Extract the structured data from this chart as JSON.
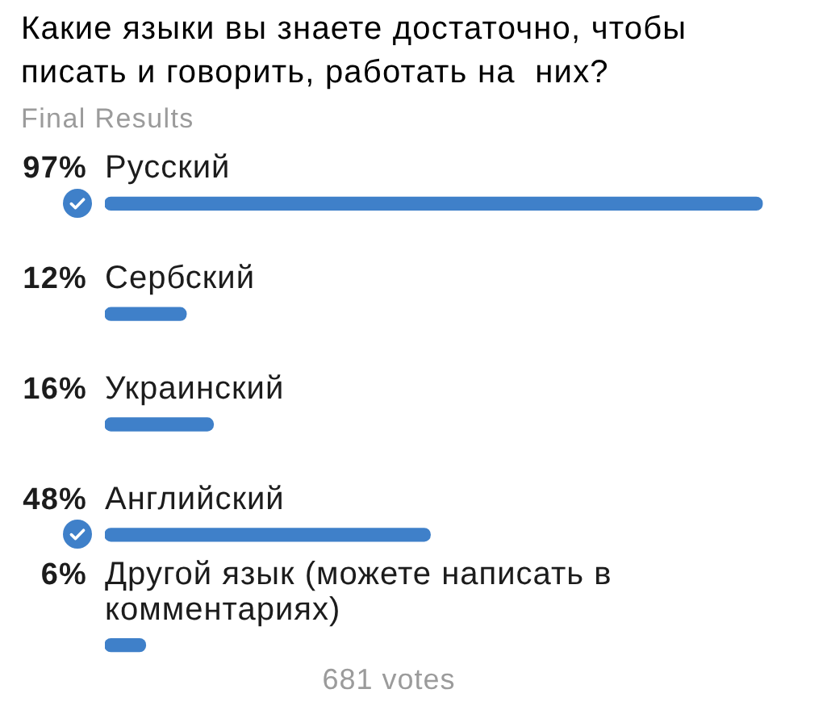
{
  "chart_data": {
    "type": "bar",
    "orientation": "horizontal",
    "title": "Какие языки вы знаете достаточно, чтобы писать и говорить, работать на  них?",
    "subtitle": "Final Results",
    "categories": [
      "Русский",
      "Сербский",
      "Украинский",
      "Английский",
      "Другой язык (можете написать в комментариях)"
    ],
    "values": [
      97,
      12,
      16,
      48,
      6
    ],
    "value_labels": [
      "97%",
      "12%",
      "16%",
      "48%",
      "6%"
    ],
    "color": "#3f80c9",
    "tick_labels": "y",
    "annotations": [
      "681 votes"
    ]
  }
}
